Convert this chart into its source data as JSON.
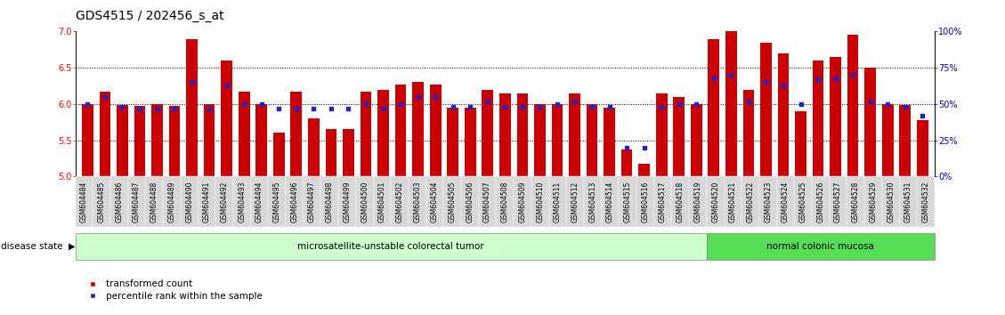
{
  "title": "GDS4515 / 202456_s_at",
  "samples": [
    "GSM604484",
    "GSM604485",
    "GSM604486",
    "GSM604487",
    "GSM604488",
    "GSM604489",
    "GSM604490",
    "GSM604491",
    "GSM604492",
    "GSM604493",
    "GSM604494",
    "GSM604495",
    "GSM604496",
    "GSM604497",
    "GSM604498",
    "GSM604499",
    "GSM604500",
    "GSM604501",
    "GSM604502",
    "GSM604503",
    "GSM604504",
    "GSM604505",
    "GSM604506",
    "GSM604507",
    "GSM604508",
    "GSM604509",
    "GSM604510",
    "GSM604511",
    "GSM604512",
    "GSM604513",
    "GSM604514",
    "GSM604515",
    "GSM604516",
    "GSM604517",
    "GSM604518",
    "GSM604519",
    "GSM604520",
    "GSM604521",
    "GSM604522",
    "GSM604523",
    "GSM604524",
    "GSM604525",
    "GSM604526",
    "GSM604527",
    "GSM604528",
    "GSM604529",
    "GSM604530",
    "GSM604531",
    "GSM604532"
  ],
  "bar_values": [
    6.0,
    6.17,
    5.98,
    5.97,
    6.0,
    5.97,
    6.9,
    6.0,
    6.6,
    6.17,
    6.0,
    5.6,
    6.17,
    5.8,
    5.65,
    5.65,
    6.17,
    6.2,
    6.27,
    6.3,
    6.27,
    5.95,
    5.95,
    6.2,
    6.15,
    6.15,
    6.0,
    6.0,
    6.15,
    6.0,
    5.95,
    5.37,
    5.17,
    6.15,
    6.1,
    6.0,
    6.9,
    7.0,
    6.2,
    6.85,
    6.7,
    5.9,
    6.6,
    6.65,
    6.95,
    6.5,
    6.0,
    5.98,
    5.78
  ],
  "percentile_values": [
    50,
    55,
    48,
    47,
    47,
    47,
    65,
    47,
    63,
    50,
    50,
    47,
    47,
    47,
    47,
    47,
    50,
    47,
    50,
    55,
    55,
    48,
    48,
    52,
    48,
    48,
    48,
    50,
    52,
    48,
    48,
    20,
    20,
    48,
    50,
    50,
    68,
    70,
    52,
    65,
    63,
    50,
    67,
    68,
    70,
    52,
    50,
    48,
    42
  ],
  "group1_label": "microsatellite-unstable colorectal tumor",
  "group2_label": "normal colonic mucosa",
  "group1_count": 36,
  "group2_count": 13,
  "ylim": [
    5.0,
    7.0
  ],
  "yticks_left": [
    5.0,
    5.5,
    6.0,
    6.5,
    7.0
  ],
  "yticks_right": [
    0,
    25,
    50,
    75,
    100
  ],
  "baseline": 5.0,
  "bar_color": "#cc0000",
  "percentile_color": "#2222cc",
  "group1_color": "#ccffcc",
  "group2_color": "#55dd55",
  "legend_red_label": "transformed count",
  "legend_blue_label": "percentile rank within the sample"
}
